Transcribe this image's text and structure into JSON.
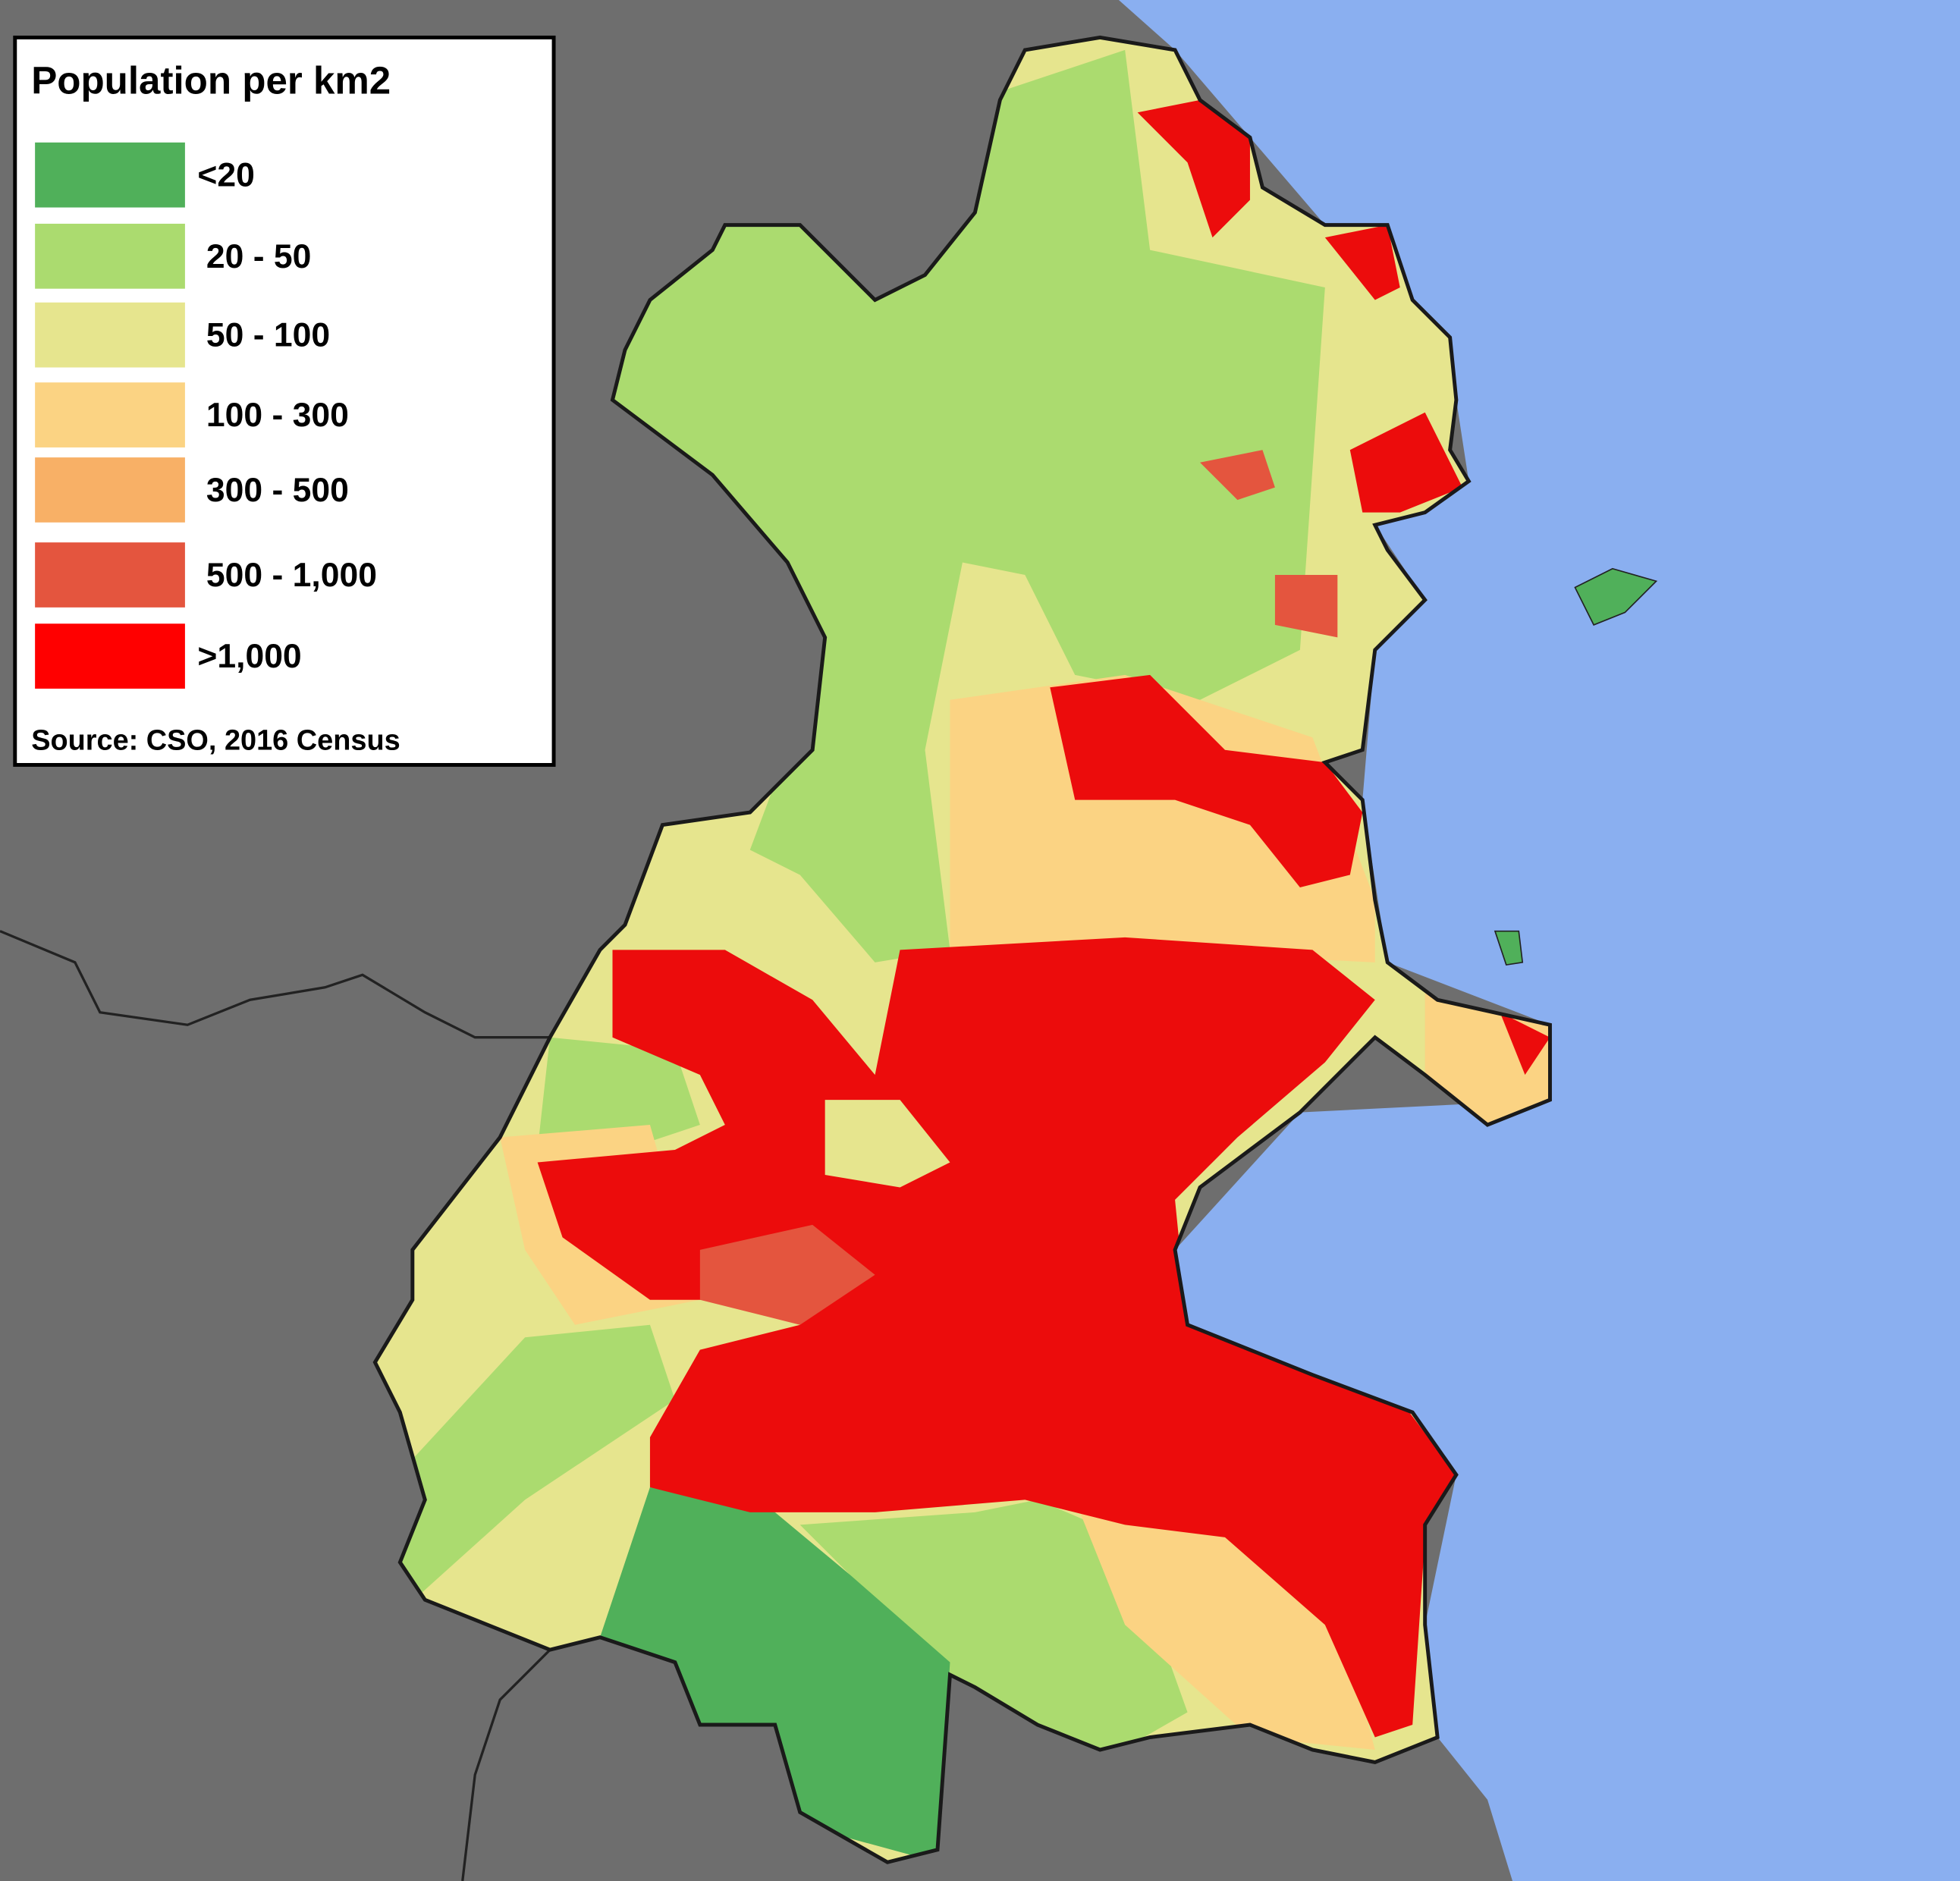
{
  "legend": {
    "title": "Population per km2",
    "items": [
      {
        "label": "<20",
        "color": "#50b05a"
      },
      {
        "label": "20 - 50",
        "color": "#abdb6f"
      },
      {
        "label": "50 - 100",
        "color": "#e6e58e"
      },
      {
        "label": "100 - 300",
        "color": "#fbd383"
      },
      {
        "label": "300 - 500",
        "color": "#f8b066"
      },
      {
        "label": "500 - 1,000",
        "color": "#e4553e"
      },
      {
        "label": ">1,000",
        "color": "#ff0000"
      }
    ],
    "source": "Source: CSO, 2016 Census"
  }
}
